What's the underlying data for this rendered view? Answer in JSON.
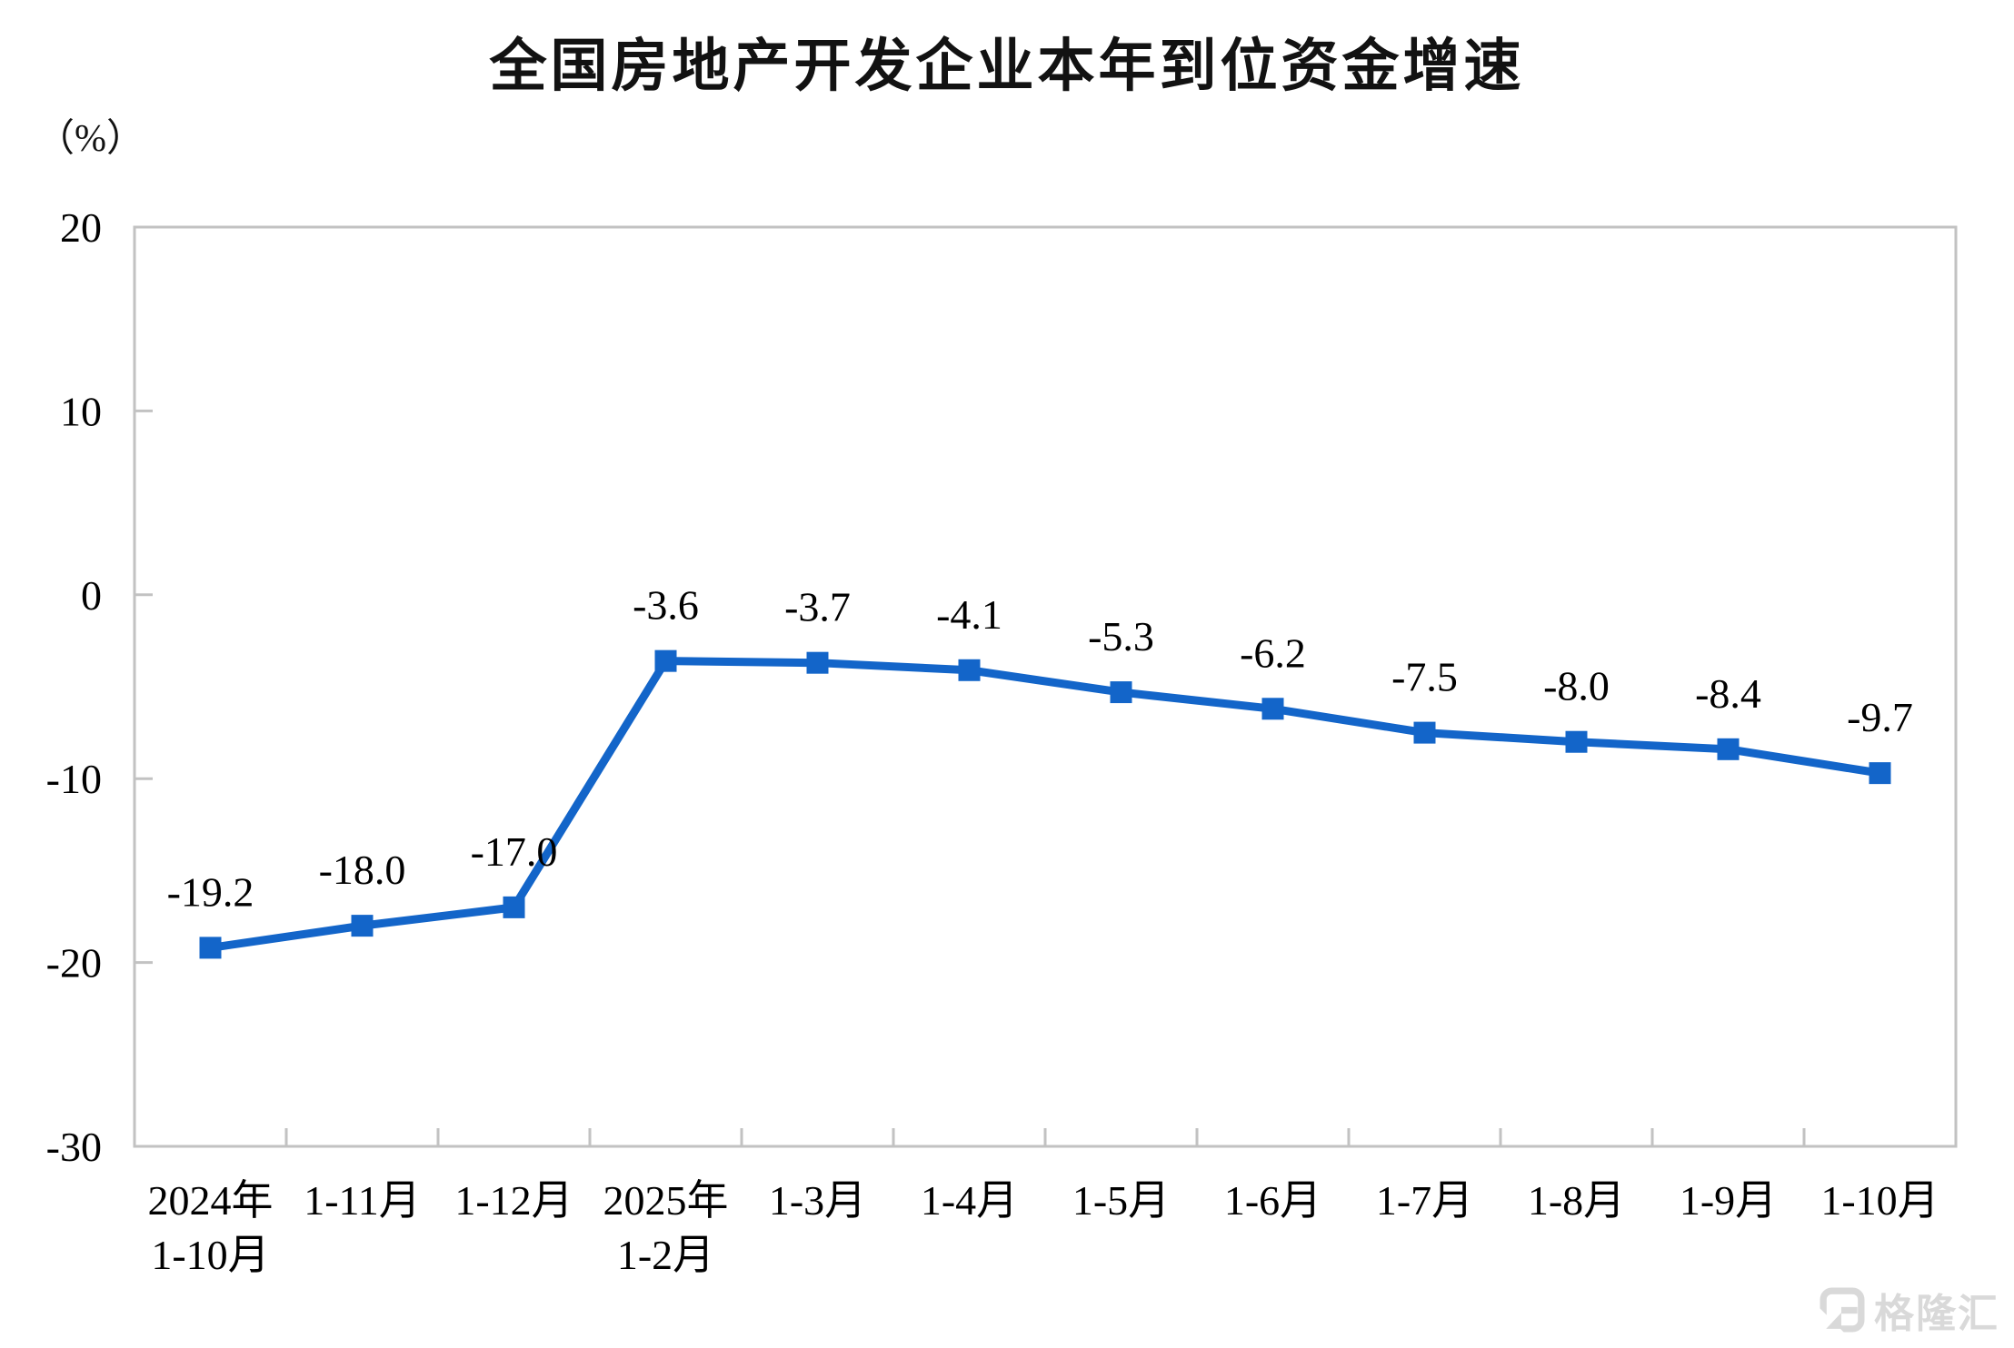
{
  "page": {
    "background": "#ffffff"
  },
  "chart_data": {
    "type": "line",
    "title": "全国房地产开发企业本年到位资金增速",
    "unit_label": "（%）",
    "categories": [
      [
        "2024年",
        "1-10月"
      ],
      [
        "1-11月"
      ],
      [
        "1-12月"
      ],
      [
        "2025年",
        "1-2月"
      ],
      [
        "1-3月"
      ],
      [
        "1-4月"
      ],
      [
        "1-5月"
      ],
      [
        "1-6月"
      ],
      [
        "1-7月"
      ],
      [
        "1-8月"
      ],
      [
        "1-9月"
      ],
      [
        "1-10月"
      ]
    ],
    "values": [
      -19.2,
      -18.0,
      -17.0,
      -3.6,
      -3.7,
      -4.1,
      -5.3,
      -6.2,
      -7.5,
      -8.0,
      -8.4,
      -9.7
    ],
    "data_labels": [
      "-19.2",
      "-18.0",
      "-17.0",
      "-3.6",
      "-3.7",
      "-4.1",
      "-5.3",
      "-6.2",
      "-7.5",
      "-8.0",
      "-8.4",
      "-9.7"
    ],
    "y_ticks": [
      20,
      10,
      0,
      -10,
      -20,
      -30
    ],
    "ylim": [
      -30,
      20
    ],
    "grid": false,
    "legend_position": "none",
    "line_color": "#1365c9",
    "marker": "square",
    "axis_color": "#c2c2c2",
    "text_color": "#000000"
  },
  "watermark": {
    "logo_icon": "gelonghui-logo",
    "text": "格隆汇"
  }
}
